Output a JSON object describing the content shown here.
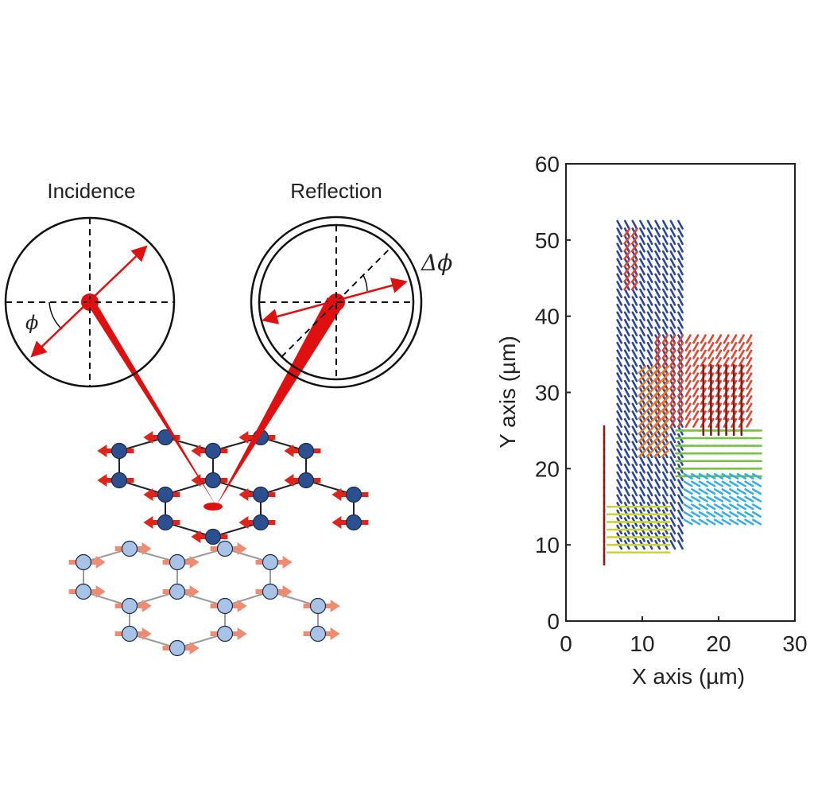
{
  "diagram": {
    "incidence_label": "Incidence",
    "reflection_label": "Reflection",
    "phi_label": "ϕ",
    "delta_phi_label": "Δϕ",
    "colors": {
      "beam": "#e01010",
      "upper_atom": "#2c4f8f",
      "lower_atom": "#a9c3e6",
      "upper_arrow": "#e0241a",
      "lower_arrow": "#f08a70"
    }
  },
  "chart_data": {
    "type": "scatter",
    "subtype": "orientation-vector-field",
    "xlabel": "X axis (µm)",
    "ylabel": "Y axis (µm)",
    "xlim": [
      0,
      30
    ],
    "ylim": [
      0,
      60
    ],
    "xticks": [
      "0",
      "10",
      "20",
      "30"
    ],
    "yticks": [
      "0",
      "10",
      "20",
      "30",
      "40",
      "50",
      "60"
    ],
    "grid": false,
    "regions": [
      {
        "name": "blue-column",
        "color": "#2a45a0",
        "x": [
          7,
          15
        ],
        "y": [
          10,
          52
        ],
        "angle_deg": -62
      },
      {
        "name": "red-upper",
        "color": "#e8432e",
        "x": [
          12,
          24
        ],
        "y": [
          26,
          37
        ],
        "angle_deg": 60
      },
      {
        "name": "red-tip",
        "color": "#e8432e",
        "x": [
          8,
          9
        ],
        "y": [
          44,
          51
        ],
        "angle_deg": 55
      },
      {
        "name": "orange-patch",
        "color": "#f07a22",
        "x": [
          10,
          13
        ],
        "y": [
          22,
          33
        ],
        "angle_deg": 45
      },
      {
        "name": "green-band",
        "color": "#78c04a",
        "x": [
          15,
          25
        ],
        "y": [
          19,
          25
        ],
        "angle_deg": 0
      },
      {
        "name": "cyan-patch",
        "color": "#38aee0",
        "x": [
          16,
          25
        ],
        "y": [
          13,
          19
        ],
        "angle_deg": -30
      },
      {
        "name": "yellow-lower",
        "color": "#c8d43a",
        "x": [
          6,
          13
        ],
        "y": [
          9,
          15
        ],
        "angle_deg": 0
      },
      {
        "name": "darkred-line",
        "color": "#8b1a1a",
        "x": [
          5,
          5
        ],
        "y": [
          8,
          25
        ],
        "angle_deg": 90
      },
      {
        "name": "darkred-right",
        "color": "#8b1a1a",
        "x": [
          18,
          23
        ],
        "y": [
          25,
          33
        ],
        "angle_deg": 90
      }
    ]
  }
}
